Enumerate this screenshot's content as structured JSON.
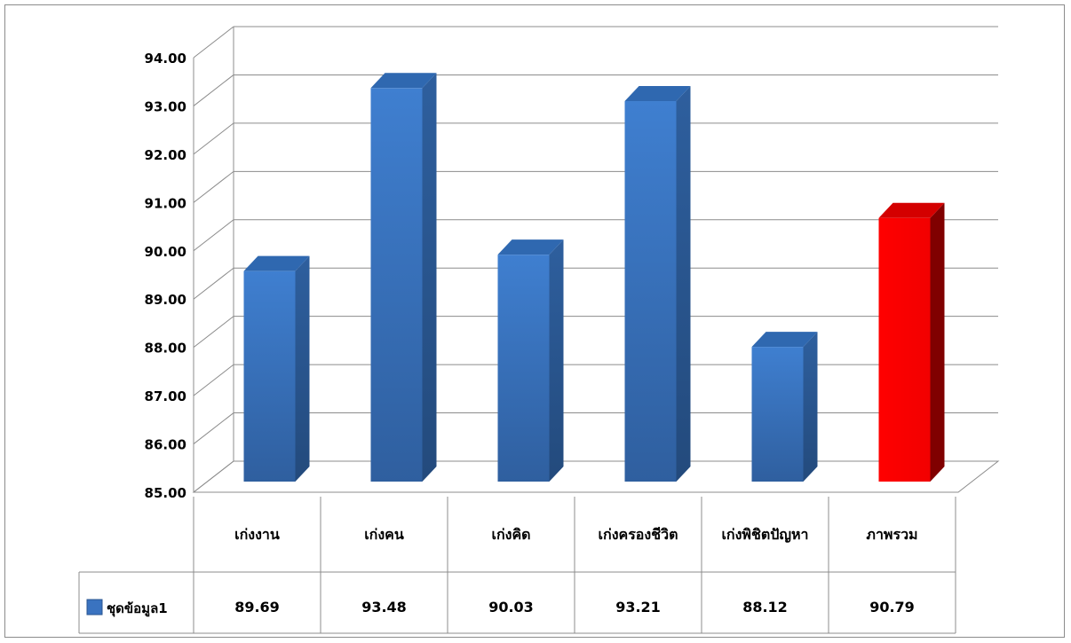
{
  "chart_data": {
    "type": "bar",
    "categories": [
      "เก่งงาน",
      "เก่งคน",
      "เก่งคิด",
      "เก่งครองชีวิต",
      "เก่งพิชิตปัญหา",
      "ภาพรวม"
    ],
    "series": [
      {
        "name": "ชุดข้อมูล1",
        "values": [
          89.69,
          93.48,
          90.03,
          93.21,
          88.12,
          90.79
        ]
      }
    ],
    "value_labels": [
      "89.69",
      "93.48",
      "90.03",
      "93.21",
      "88.12",
      "90.79"
    ],
    "y_ticks": [
      "85.00",
      "86.00",
      "87.00",
      "88.00",
      "89.00",
      "90.00",
      "91.00",
      "92.00",
      "93.00",
      "94.00"
    ],
    "ylim": [
      85,
      94
    ],
    "grid": true,
    "legend": "data-table-left",
    "colors": {
      "series": "#3a73c0",
      "highlight": "#ff0000",
      "grid": "#8c8c8c"
    },
    "highlight_index": 5
  }
}
